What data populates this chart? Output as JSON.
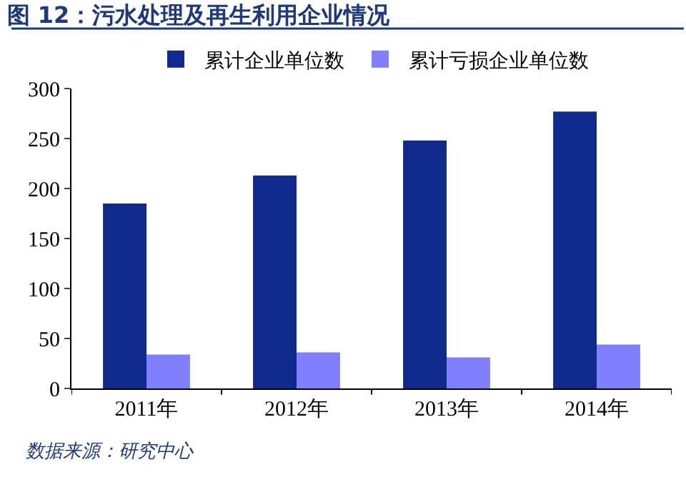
{
  "chart_data": {
    "type": "bar",
    "title": "图 12：污水处理及再生利用企业情况",
    "categories": [
      "2011年",
      "2012年",
      "2013年",
      "2014年"
    ],
    "series": [
      {
        "name": "累计企业单位数",
        "color": "#0f298c",
        "values": [
          185,
          213,
          248,
          277
        ]
      },
      {
        "name": "累计亏损企业单位数",
        "color": "#7f7fff",
        "values": [
          34,
          36,
          31,
          44
        ]
      }
    ],
    "ylim": [
      0,
      300
    ],
    "yticks": [
      0,
      50,
      100,
      150,
      200,
      250,
      300
    ],
    "grid": false,
    "legend": "top",
    "annotations": [
      "数据来源：研究中心"
    ]
  }
}
